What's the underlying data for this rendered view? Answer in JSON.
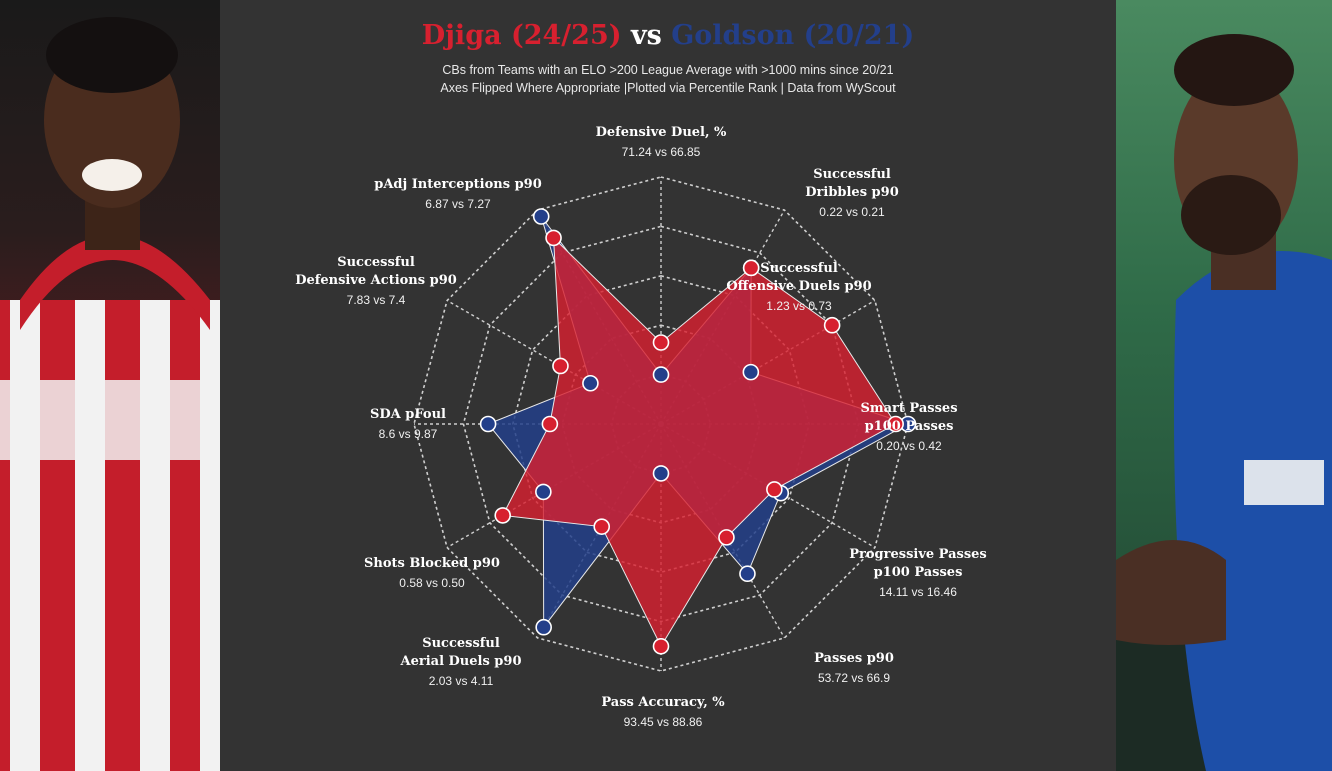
{
  "title": {
    "player1": "Djiga (24/25)",
    "vs": "vs",
    "player2": "Goldson (20/21)"
  },
  "subtitle": {
    "line1": "CBs from Teams with an ELO >200 League Average with >1000 mins since 20/21",
    "line2": "Axes Flipped Where Appropriate |Plotted via Percentile Rank | Data from WyScout"
  },
  "colors": {
    "player1": "#d7202f",
    "player2": "#233f8a",
    "background": "#333333"
  },
  "chart_data": {
    "type": "radar",
    "scale": "percentile rank",
    "series": [
      {
        "name": "Djiga (24/25)",
        "color": "#d7202f",
        "values": [
          0.33,
          0.73,
          0.8,
          0.95,
          0.53,
          0.53,
          0.9,
          0.48,
          0.74,
          0.45,
          0.47,
          0.87
        ]
      },
      {
        "name": "Goldson (20/21)",
        "color": "#233f8a",
        "values": [
          0.2,
          0.73,
          0.42,
          1.0,
          0.56,
          0.7,
          0.2,
          0.95,
          0.55,
          0.7,
          0.33,
          0.97
        ]
      }
    ],
    "metrics": [
      {
        "name": "Defensive Duel, %",
        "values": "71.24 vs 66.85"
      },
      {
        "name": "Successful\nDribbles p90",
        "values": "0.22 vs 0.21"
      },
      {
        "name": "Successful\nOffensive Duels p90",
        "values": "1.23 vs 0.73"
      },
      {
        "name": "Smart Passes\np100 Passes",
        "values": "0.20 vs 0.42"
      },
      {
        "name": "Progressive Passes\np100 Passes",
        "values": "14.11 vs 16.46"
      },
      {
        "name": "Passes p90",
        "values": "53.72 vs 66.9"
      },
      {
        "name": "Pass Accuracy, %",
        "values": "93.45 vs 88.86"
      },
      {
        "name": "Successful\nAerial Duels p90",
        "values": "2.03 vs 4.11"
      },
      {
        "name": "Shots Blocked p90",
        "values": "0.58 vs 0.50"
      },
      {
        "name": "SDA pFoul",
        "values": "8.6 vs 9.87"
      },
      {
        "name": "Successful\nDefensive Actions p90",
        "values": "7.83 vs 7.4"
      },
      {
        "name": "pAdj Interceptions p90",
        "values": "6.87 vs 7.27"
      }
    ]
  }
}
